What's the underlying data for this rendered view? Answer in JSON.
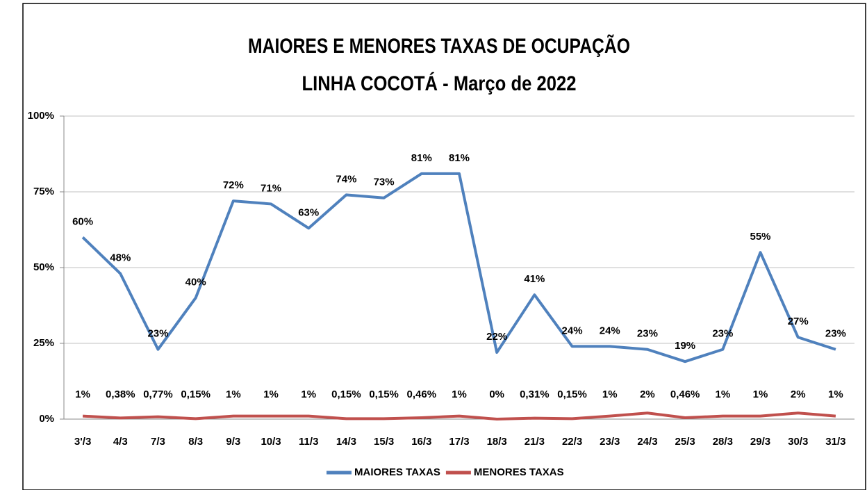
{
  "chart_data": {
    "type": "line",
    "title": [
      "MAIORES E MENORES TAXAS DE OCUPAÇÃO",
      "LINHA COCOTÁ - Março de 2022"
    ],
    "categories": [
      "3'/3",
      "4/3",
      "7/3",
      "8/3",
      "9/3",
      "10/3",
      "11/3",
      "14/3",
      "15/3",
      "16/3",
      "17/3",
      "18/3",
      "21/3",
      "22/3",
      "23/3",
      "24/3",
      "25/3",
      "28/3",
      "29/3",
      "30/3",
      "31/3"
    ],
    "series": [
      {
        "name": "MAIORES TAXAS",
        "color": "#4f81bd",
        "values": [
          60,
          48,
          23,
          40,
          72,
          71,
          63,
          74,
          73,
          81,
          81,
          22,
          41,
          24,
          24,
          23,
          19,
          23,
          55,
          27,
          23
        ],
        "value_labels": [
          "60%",
          "48%",
          "23%",
          "40%",
          "72%",
          "71%",
          "63%",
          "74%",
          "73%",
          "81%",
          "81%",
          "22%",
          "41%",
          "24%",
          "24%",
          "23%",
          "19%",
          "23%",
          "55%",
          "27%",
          "23%"
        ]
      },
      {
        "name": "MENORES TAXAS",
        "color": "#c0504d",
        "values": [
          1,
          0.38,
          0.77,
          0.15,
          1,
          1,
          1,
          0.15,
          0.15,
          0.46,
          1,
          0,
          0.31,
          0.15,
          1,
          2,
          0.46,
          1,
          1,
          2,
          1
        ],
        "value_labels": [
          "1%",
          "0,38%",
          "0,77%",
          "0,15%",
          "1%",
          "1%",
          "1%",
          "0,15%",
          "0,15%",
          "0,46%",
          "1%",
          "0%",
          "0,31%",
          "0,15%",
          "1%",
          "2%",
          "0,46%",
          "1%",
          "1%",
          "2%",
          "1%"
        ]
      }
    ],
    "ylim": [
      0,
      100
    ],
    "yticks": [
      {
        "value": 0,
        "label": "0%"
      },
      {
        "value": 25,
        "label": "25%"
      },
      {
        "value": 50,
        "label": "50%"
      },
      {
        "value": 75,
        "label": "75%"
      },
      {
        "value": 100,
        "label": "100%"
      }
    ],
    "grid": true,
    "legend": "bottom"
  }
}
